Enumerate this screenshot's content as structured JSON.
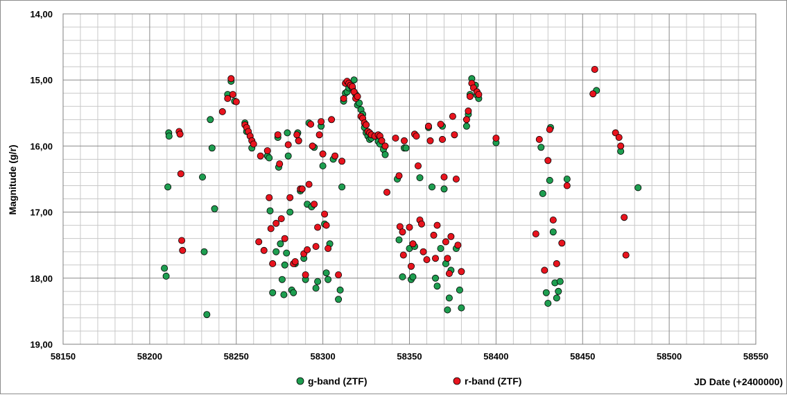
{
  "chart_data": {
    "type": "scatter",
    "title": "",
    "xlabel": "JD Date (+2400000)",
    "ylabel": "Magnitude (g/r)",
    "xlim": [
      58150,
      58550
    ],
    "ylim": [
      14.0,
      19.0
    ],
    "y_inverted": true,
    "x_major_step": 50,
    "x_minor_step": 10,
    "y_major_step": 1.0,
    "y_minor_step": 0.2,
    "x_tick_labels": [
      "58150",
      "58200",
      "58250",
      "58300",
      "58350",
      "58400",
      "58450",
      "58500",
      "58550"
    ],
    "y_tick_labels": [
      "14,00",
      "15,00",
      "16,00",
      "17,00",
      "18,00",
      "19,00"
    ],
    "grid": true,
    "legend_position": "bottom-center",
    "series": [
      {
        "name": "g-band (ZTF)",
        "color": "#1e9e50",
        "points": [
          [
            58208.5,
            17.85
          ],
          [
            58209.5,
            17.97
          ],
          [
            58210.5,
            16.62
          ],
          [
            58211,
            15.8
          ],
          [
            58211.2,
            15.85
          ],
          [
            58230.5,
            16.47
          ],
          [
            58231.5,
            17.6
          ],
          [
            58233,
            18.55
          ],
          [
            58235,
            15.6
          ],
          [
            58236,
            16.03
          ],
          [
            58237.5,
            16.95
          ],
          [
            58245,
            15.22
          ],
          [
            58247,
            15.02
          ],
          [
            58249,
            15.32
          ],
          [
            58255,
            15.65
          ],
          [
            58256,
            15.78
          ],
          [
            58259,
            16.03
          ],
          [
            58268,
            16.15
          ],
          [
            58269,
            16.18
          ],
          [
            58269.5,
            16.98
          ],
          [
            58271,
            18.22
          ],
          [
            58273,
            17.6
          ],
          [
            58274,
            15.87
          ],
          [
            58274.5,
            16.32
          ],
          [
            58275.5,
            17.48
          ],
          [
            58276.5,
            18.02
          ],
          [
            58277.5,
            18.25
          ],
          [
            58278,
            17.8
          ],
          [
            58279,
            17.62
          ],
          [
            58279.5,
            15.8
          ],
          [
            58280,
            16.15
          ],
          [
            58281,
            17.0
          ],
          [
            58282,
            18.18
          ],
          [
            58283,
            18.22
          ],
          [
            58284,
            17.78
          ],
          [
            58285.5,
            15.8
          ],
          [
            58286,
            15.92
          ],
          [
            58287,
            16.68
          ],
          [
            58289,
            17.7
          ],
          [
            58290,
            18.02
          ],
          [
            58291,
            16.88
          ],
          [
            58292,
            15.65
          ],
          [
            58293.5,
            16.92
          ],
          [
            58295,
            16.02
          ],
          [
            58296,
            18.15
          ],
          [
            58297,
            18.05
          ],
          [
            58299,
            15.7
          ],
          [
            58300,
            16.3
          ],
          [
            58301,
            17.18
          ],
          [
            58302,
            17.92
          ],
          [
            58303,
            18.02
          ],
          [
            58304,
            17.48
          ],
          [
            58306,
            16.2
          ],
          [
            58309,
            18.32
          ],
          [
            58310,
            18.18
          ],
          [
            58311,
            16.62
          ],
          [
            58312,
            15.32
          ],
          [
            58313,
            15.2
          ],
          [
            58314,
            15.18
          ],
          [
            58315,
            15.12
          ],
          [
            58316,
            15.08
          ],
          [
            58317,
            15.12
          ],
          [
            58318,
            15.0
          ],
          [
            58319,
            15.22
          ],
          [
            58320,
            15.38
          ],
          [
            58321,
            15.35
          ],
          [
            58322,
            15.45
          ],
          [
            58323,
            15.52
          ],
          [
            58324,
            15.72
          ],
          [
            58325,
            15.8
          ],
          [
            58326,
            15.85
          ],
          [
            58327,
            15.9
          ],
          [
            58328,
            15.88
          ],
          [
            58332,
            15.93
          ],
          [
            58333,
            15.97
          ],
          [
            58335,
            16.05
          ],
          [
            58336,
            16.13
          ],
          [
            58343,
            16.5
          ],
          [
            58344,
            17.42
          ],
          [
            58346,
            17.98
          ],
          [
            58347,
            16.03
          ],
          [
            58348,
            16.03
          ],
          [
            58350,
            17.55
          ],
          [
            58351,
            18.02
          ],
          [
            58352,
            17.98
          ],
          [
            58353,
            17.52
          ],
          [
            58356,
            16.48
          ],
          [
            58361,
            15.72
          ],
          [
            58363,
            16.62
          ],
          [
            58365,
            18.0
          ],
          [
            58366,
            18.12
          ],
          [
            58368,
            17.55
          ],
          [
            58369,
            15.7
          ],
          [
            58370,
            16.65
          ],
          [
            58371,
            17.78
          ],
          [
            58372,
            18.48
          ],
          [
            58373,
            18.3
          ],
          [
            58374,
            17.88
          ],
          [
            58377,
            17.55
          ],
          [
            58379,
            18.18
          ],
          [
            58380,
            18.45
          ],
          [
            58383,
            15.7
          ],
          [
            58384,
            15.52
          ],
          [
            58385,
            15.22
          ],
          [
            58386,
            14.98
          ],
          [
            58388,
            15.08
          ],
          [
            58389,
            15.23
          ],
          [
            58390,
            15.28
          ],
          [
            58400,
            15.95
          ],
          [
            58426,
            16.02
          ],
          [
            58427,
            16.72
          ],
          [
            58429,
            18.22
          ],
          [
            58430,
            18.38
          ],
          [
            58431,
            16.52
          ],
          [
            58431.5,
            15.72
          ],
          [
            58433,
            17.3
          ],
          [
            58434,
            18.07
          ],
          [
            58435,
            18.3
          ],
          [
            58436,
            18.2
          ],
          [
            58437,
            18.05
          ],
          [
            58441,
            16.5
          ],
          [
            58458,
            15.16
          ],
          [
            58472,
            16.08
          ],
          [
            58482,
            16.63
          ]
        ]
      },
      {
        "name": "r-band (ZTF)",
        "color": "#e8141e",
        "points": [
          [
            58217,
            15.78
          ],
          [
            58217.5,
            15.82
          ],
          [
            58218,
            16.42
          ],
          [
            58218.5,
            17.43
          ],
          [
            58219,
            17.58
          ],
          [
            58242,
            15.48
          ],
          [
            58245,
            15.28
          ],
          [
            58247,
            14.98
          ],
          [
            58248,
            15.22
          ],
          [
            58250,
            15.33
          ],
          [
            58255,
            15.68
          ],
          [
            58256,
            15.72
          ],
          [
            58257,
            15.78
          ],
          [
            58258,
            15.85
          ],
          [
            58259,
            15.92
          ],
          [
            58260,
            15.97
          ],
          [
            58263,
            17.45
          ],
          [
            58264,
            16.15
          ],
          [
            58266,
            17.58
          ],
          [
            58268,
            16.07
          ],
          [
            58269,
            16.78
          ],
          [
            58270,
            17.25
          ],
          [
            58271,
            17.78
          ],
          [
            58273,
            17.17
          ],
          [
            58274,
            15.83
          ],
          [
            58275,
            16.27
          ],
          [
            58276,
            17.1
          ],
          [
            58278,
            17.4
          ],
          [
            58280,
            15.98
          ],
          [
            58281,
            16.78
          ],
          [
            58283,
            17.78
          ],
          [
            58284,
            17.75
          ],
          [
            58285,
            15.83
          ],
          [
            58286,
            15.92
          ],
          [
            58287,
            16.65
          ],
          [
            58288,
            16.65
          ],
          [
            58289,
            17.63
          ],
          [
            58290,
            17.95
          ],
          [
            58291,
            17.57
          ],
          [
            58292,
            16.58
          ],
          [
            58293,
            15.67
          ],
          [
            58294,
            16.0
          ],
          [
            58295,
            16.88
          ],
          [
            58296,
            17.52
          ],
          [
            58297,
            17.23
          ],
          [
            58298,
            15.83
          ],
          [
            58299,
            15.63
          ],
          [
            58300,
            16.12
          ],
          [
            58301,
            17.03
          ],
          [
            58302,
            17.2
          ],
          [
            58303,
            17.55
          ],
          [
            58305,
            15.6
          ],
          [
            58307,
            16.15
          ],
          [
            58309,
            17.95
          ],
          [
            58311,
            16.23
          ],
          [
            58312,
            15.28
          ],
          [
            58313,
            15.05
          ],
          [
            58314,
            15.02
          ],
          [
            58315,
            15.05
          ],
          [
            58316,
            15.08
          ],
          [
            58317,
            15.1
          ],
          [
            58318,
            15.18
          ],
          [
            58319,
            15.28
          ],
          [
            58320,
            15.25
          ],
          [
            58322,
            15.55
          ],
          [
            58323,
            15.58
          ],
          [
            58324,
            15.65
          ],
          [
            58325,
            15.68
          ],
          [
            58326,
            15.78
          ],
          [
            58327,
            15.8
          ],
          [
            58328,
            15.83
          ],
          [
            58330,
            15.85
          ],
          [
            58332,
            15.83
          ],
          [
            58333,
            15.85
          ],
          [
            58334,
            15.92
          ],
          [
            58336,
            16.0
          ],
          [
            58337,
            16.7
          ],
          [
            58342,
            15.88
          ],
          [
            58344,
            16.45
          ],
          [
            58344.5,
            17.22
          ],
          [
            58346,
            17.3
          ],
          [
            58346.5,
            17.65
          ],
          [
            58347,
            15.92
          ],
          [
            58350,
            17.23
          ],
          [
            58351,
            17.82
          ],
          [
            58352,
            17.48
          ],
          [
            58353,
            15.82
          ],
          [
            58354,
            15.85
          ],
          [
            58355,
            16.3
          ],
          [
            58356,
            17.12
          ],
          [
            58357,
            17.18
          ],
          [
            58358,
            17.6
          ],
          [
            58360,
            17.72
          ],
          [
            58361,
            15.7
          ],
          [
            58362,
            15.92
          ],
          [
            58364,
            17.35
          ],
          [
            58365,
            17.7
          ],
          [
            58366,
            17.2
          ],
          [
            58368,
            15.67
          ],
          [
            58369,
            15.9
          ],
          [
            58370,
            16.47
          ],
          [
            58371,
            17.45
          ],
          [
            58372,
            17.7
          ],
          [
            58373,
            17.93
          ],
          [
            58374,
            17.37
          ],
          [
            58375,
            15.55
          ],
          [
            58376,
            15.83
          ],
          [
            58377,
            16.5
          ],
          [
            58378,
            17.5
          ],
          [
            58380,
            17.9
          ],
          [
            58383,
            15.6
          ],
          [
            58384,
            15.47
          ],
          [
            58385,
            15.25
          ],
          [
            58386,
            15.05
          ],
          [
            58387,
            15.12
          ],
          [
            58389,
            15.18
          ],
          [
            58390,
            15.22
          ],
          [
            58400,
            15.88
          ],
          [
            58423,
            17.33
          ],
          [
            58425,
            15.9
          ],
          [
            58428,
            17.88
          ],
          [
            58430,
            16.22
          ],
          [
            58431,
            15.75
          ],
          [
            58433,
            17.12
          ],
          [
            58435,
            17.78
          ],
          [
            58438,
            17.47
          ],
          [
            58441,
            16.6
          ],
          [
            58456,
            15.21
          ],
          [
            58457,
            14.84
          ],
          [
            58469,
            15.8
          ],
          [
            58471,
            15.87
          ],
          [
            58472,
            16.0
          ],
          [
            58474,
            17.08
          ],
          [
            58475,
            17.65
          ]
        ]
      }
    ]
  }
}
